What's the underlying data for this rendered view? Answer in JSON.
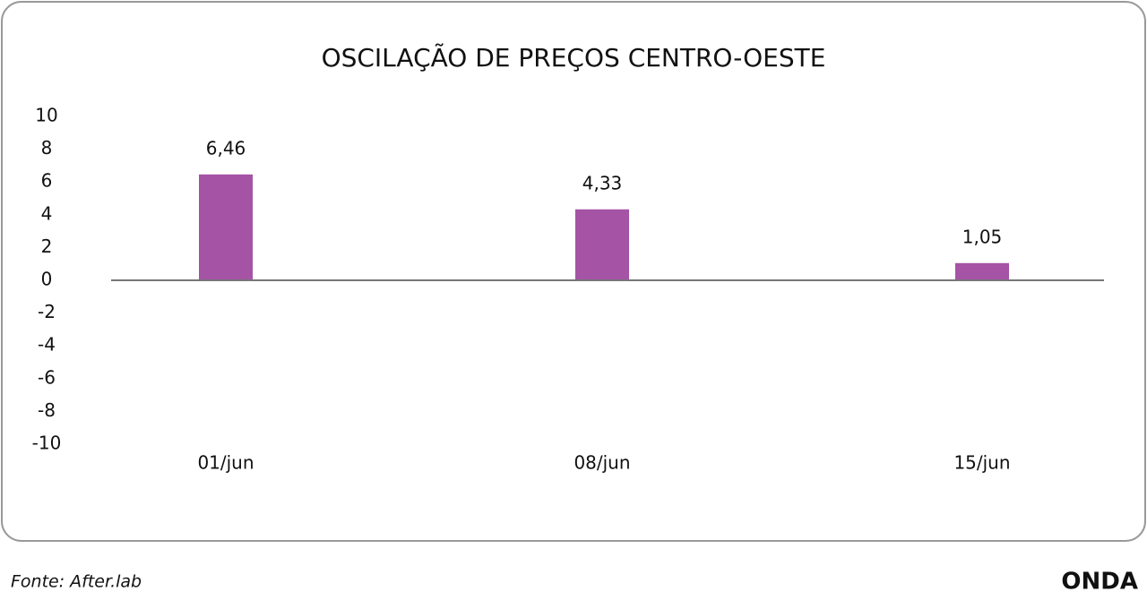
{
  "chart_data": {
    "type": "bar",
    "title": "OSCILAÇÃO DE PREÇOS CENTRO-OESTE",
    "categories": [
      "01/jun",
      "08/jun",
      "15/jun"
    ],
    "values": [
      6.46,
      4.33,
      1.05
    ],
    "value_labels": [
      "6,46",
      "4,33",
      "1,05"
    ],
    "color": "#a453a5",
    "ylim": [
      -10,
      10
    ],
    "yticks": [
      -10,
      -8,
      -6,
      -4,
      -2,
      0,
      2,
      4,
      6,
      8,
      10
    ],
    "grid": false
  },
  "footer": {
    "source": "Fonte: After.lab",
    "brand": "ONDA"
  }
}
